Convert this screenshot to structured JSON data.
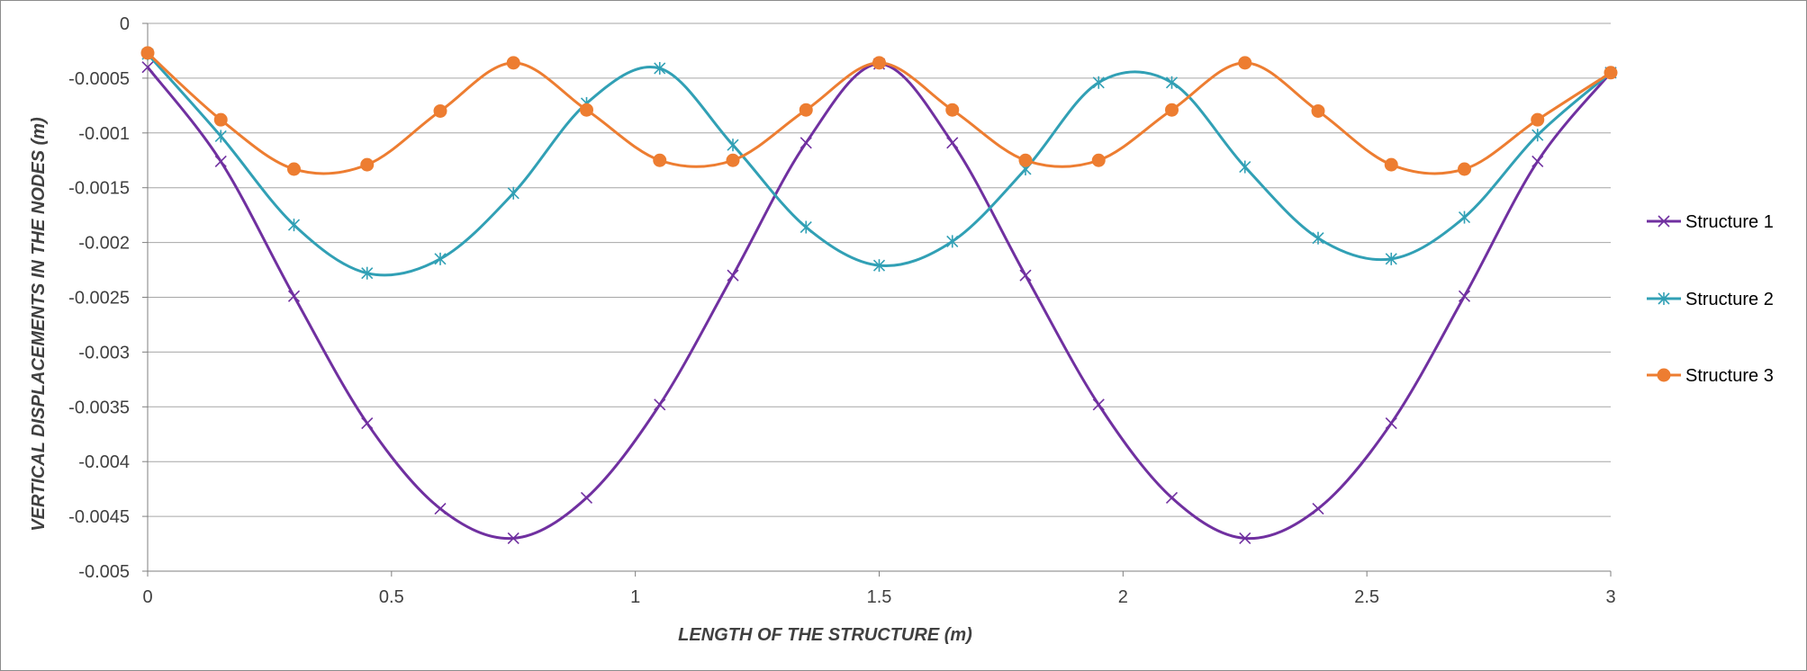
{
  "chart_data": {
    "type": "line",
    "title": "",
    "xlabel": "LENGTH OF THE STRUCTURE (m)",
    "ylabel": "VERTICAL DISPLACEMENTS IN THE NODES (m)",
    "xlim": [
      0,
      3
    ],
    "ylim": [
      -0.005,
      0
    ],
    "x_ticks": [
      0,
      0.5,
      1,
      1.5,
      2,
      2.5,
      3
    ],
    "x_tick_labels": [
      "0",
      "0.5",
      "1",
      "1.5",
      "2",
      "2.5",
      "3"
    ],
    "y_ticks": [
      0,
      -0.0005,
      -0.001,
      -0.0015,
      -0.002,
      -0.0025,
      -0.003,
      -0.0035,
      -0.004,
      -0.0045,
      -0.005
    ],
    "y_tick_labels": [
      "0",
      "-0.0005",
      "-0.001",
      "-0.0015",
      "-0.002",
      "-0.0025",
      "-0.003",
      "-0.0035",
      "-0.004",
      "-0.0045",
      "-0.005"
    ],
    "grid": "horizontal",
    "legend_position": "right",
    "x": [
      0,
      0.15,
      0.3,
      0.45,
      0.6,
      0.75,
      0.9,
      1.05,
      1.2,
      1.35,
      1.5,
      1.65,
      1.8,
      1.95,
      2.1,
      2.25,
      2.4,
      2.55,
      2.7,
      2.85,
      3
    ],
    "series": [
      {
        "name": "Structure 1",
        "color": "#7030a0",
        "marker": "x",
        "values": [
          -0.0004,
          -0.00126,
          -0.00249,
          -0.00365,
          -0.00443,
          -0.0047,
          -0.00433,
          -0.00348,
          -0.0023,
          -0.00109,
          -0.00037,
          -0.00109,
          -0.0023,
          -0.00348,
          -0.00433,
          -0.0047,
          -0.00443,
          -0.00365,
          -0.00249,
          -0.00126,
          -0.00045
        ]
      },
      {
        "name": "Structure 2",
        "color": "#31a0b5",
        "marker": "asterisk",
        "values": [
          -0.00028,
          -0.00103,
          -0.00184,
          -0.00228,
          -0.00215,
          -0.00155,
          -0.00073,
          -0.00041,
          -0.00111,
          -0.00186,
          -0.00221,
          -0.00199,
          -0.00133,
          -0.00054,
          -0.00054,
          -0.00131,
          -0.00196,
          -0.00215,
          -0.00177,
          -0.00102,
          -0.00045
        ]
      },
      {
        "name": "Structure 3",
        "color": "#ed7d31",
        "marker": "circle",
        "values": [
          -0.00027,
          -0.00088,
          -0.00133,
          -0.00129,
          -0.0008,
          -0.00036,
          -0.00079,
          -0.00125,
          -0.00125,
          -0.00079,
          -0.00036,
          -0.00079,
          -0.00125,
          -0.00125,
          -0.00079,
          -0.00036,
          -0.0008,
          -0.00129,
          -0.00133,
          -0.00088,
          -0.00045
        ]
      }
    ]
  }
}
